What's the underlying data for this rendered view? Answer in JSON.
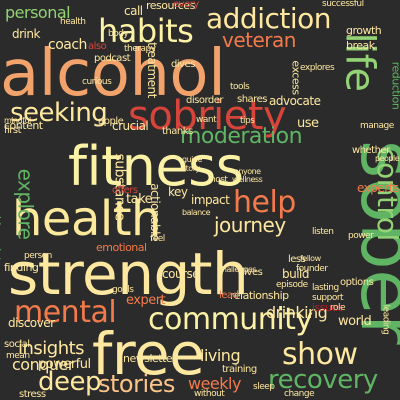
{
  "colors": {
    "background": "#2b2b2b",
    "palette": {
      "salmon": "#f2a36b",
      "cream": "#fbf2a6",
      "lightyellow": "#fde99c",
      "green": "#5fb564",
      "lightgreen": "#93d275",
      "darkgreen": "#2a9a4f",
      "red": "#d6443a",
      "darkred": "#b51f2a",
      "orange": "#f37a4b",
      "paleyellow": "#fee8a0",
      "paleorange": "#fbc489"
    }
  },
  "words": [
    "alcohol",
    "fitness",
    "strength",
    "health",
    "free",
    "sober",
    "sobriety",
    "habits",
    "addiction",
    "mental",
    "community",
    "life",
    "show",
    "recovery",
    "seeking",
    "help",
    "control",
    "veteran",
    "moderation",
    "deep",
    "stories",
    "journey",
    "explore",
    "insights",
    "conquer",
    "weekly",
    "personal",
    "drinking",
    "living",
    "coach",
    "expert",
    "crucial",
    "impact",
    "take",
    "key",
    "content",
    "advocate",
    "disorder",
    "shares",
    "reduction",
    "use",
    "experts",
    "whether",
    "world",
    "course",
    "relationship",
    "discover",
    "finding",
    "emotional",
    "powerful",
    "newsletter",
    "build",
    "founder",
    "growth",
    "break",
    "treatment",
    "substance",
    "dives",
    "apple",
    "thanks",
    "excess",
    "first",
    "blueprint",
    "drink",
    "call",
    "resources",
    "every",
    "options",
    "issues",
    "lead",
    "stress",
    "actionable",
    "offers",
    "balance",
    "leading",
    "challenges",
    "guide",
    "story",
    "podcast",
    "manage",
    "also",
    "lives",
    "less",
    "role",
    "successful",
    "therapy",
    "sleep",
    "training",
    "person",
    "social",
    "mean",
    "lasting",
    "support",
    "anyone",
    "wellness",
    "explores",
    "mindful",
    "tips",
    "want",
    "goals",
    "tools",
    "change",
    "fellow",
    "people",
    "listen",
    "body",
    "curious",
    "host",
    "health",
    "without",
    "episode",
    "power",
    "feel"
  ]
}
